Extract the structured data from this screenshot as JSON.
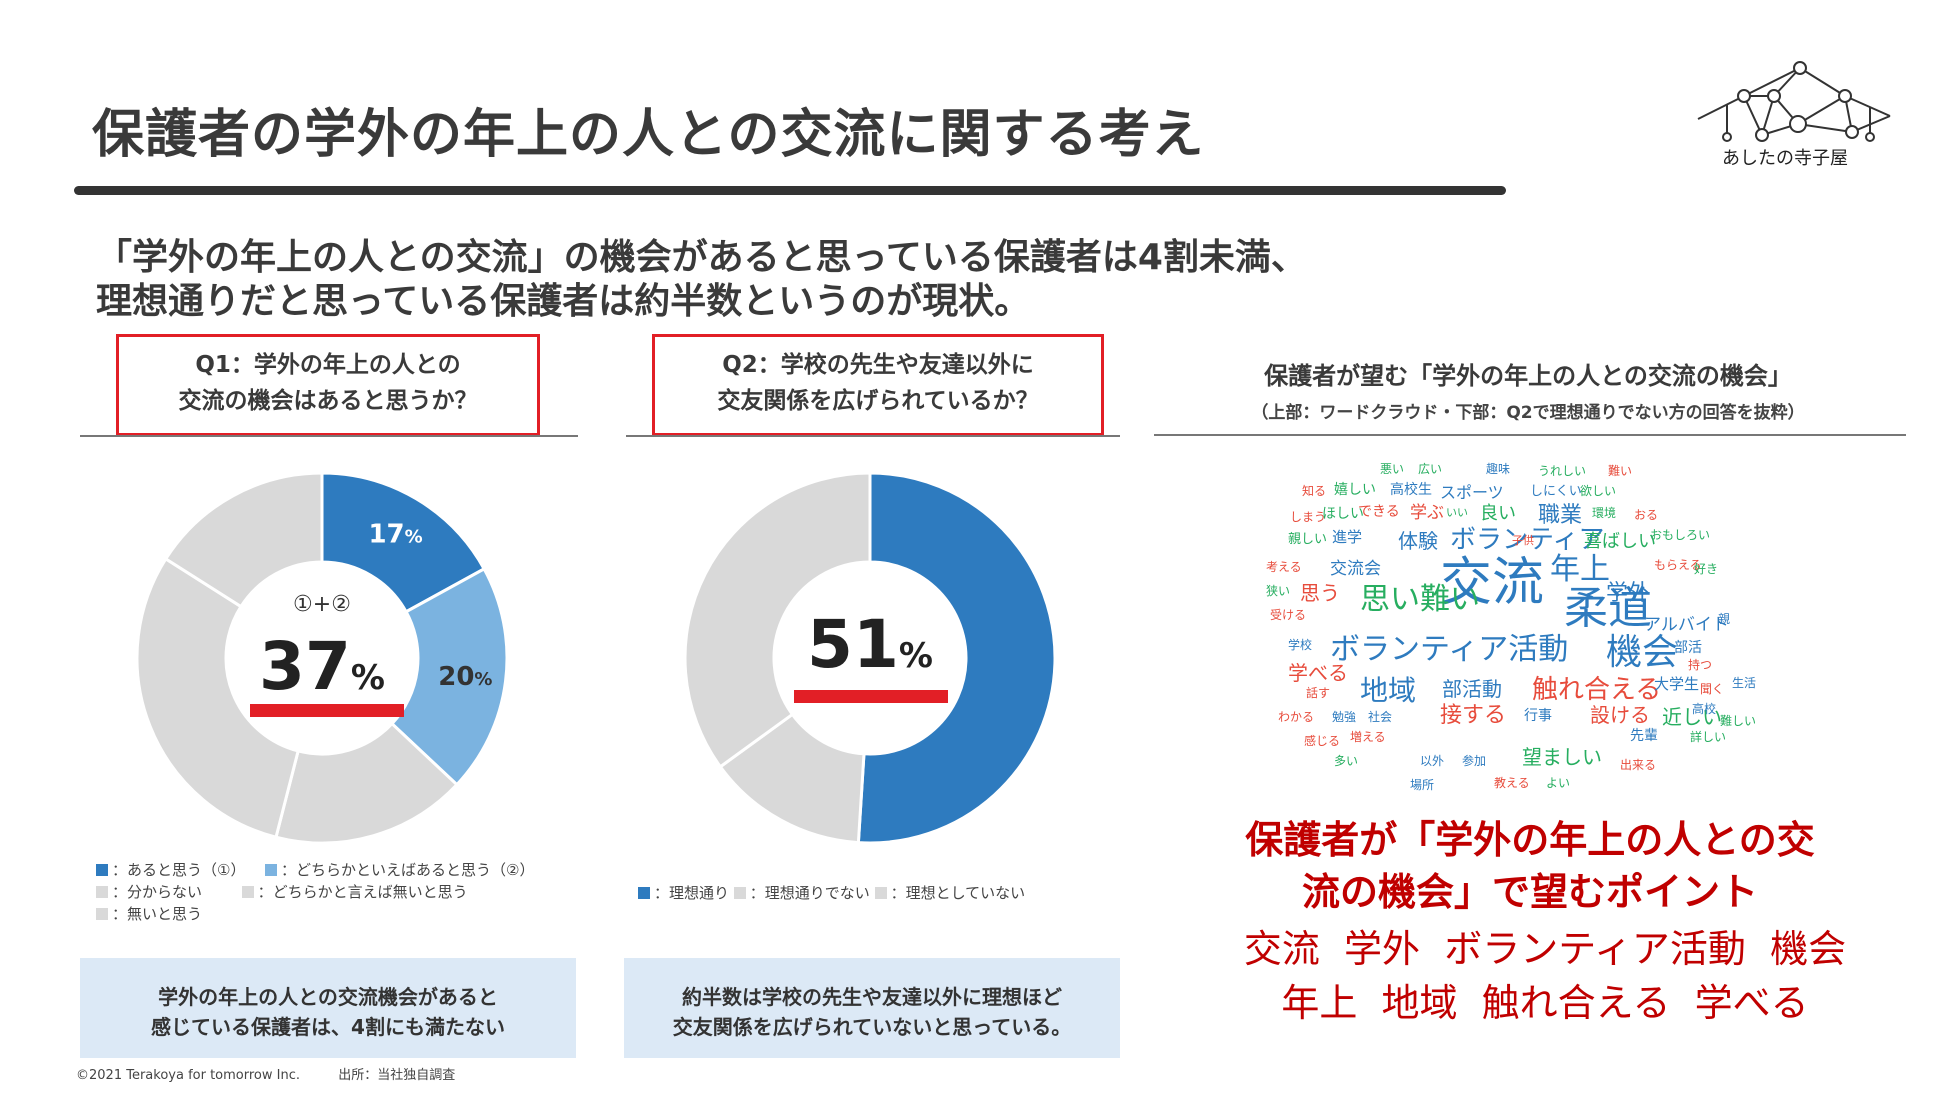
{
  "title": "保護者の学外の年上の人との交流に関する考え",
  "subtitle": {
    "line1": "「学外の年上の人との交流」の機会があると思っている保護者は4割未満、",
    "line2": "理想通りだと思っている保護者は約半数というのが現状。"
  },
  "logo": {
    "text": "あしたの寺子屋"
  },
  "colors": {
    "accent_red": "#e21f26",
    "dark_blue": "#2e7bbf",
    "light_blue": "#7bb3e0",
    "grey": "#d9d9d9",
    "summary_bg": "#dce9f6"
  },
  "q1": {
    "question_line1": "Q1：学外の年上の人との",
    "question_line2": "交流の機会はあると思うか？",
    "center_caption": "①+②",
    "center_value": "37",
    "center_unit": "%",
    "legend": [
      {
        "label": "：あると思う（①）",
        "color": "#2e7bbf"
      },
      {
        "label": "：どちらかといえばあると思う（②）",
        "color": "#7bb3e0"
      },
      {
        "label": "：分からない",
        "color": "#d9d9d9"
      },
      {
        "label": "：どちらかと言えば無いと思う",
        "color": "#d9d9d9"
      },
      {
        "label": "：無いと思う",
        "color": "#d9d9d9"
      }
    ],
    "summary_line1": "学外の年上の人との交流機会があると",
    "summary_line2": "感じている保護者は、4割にも満たない"
  },
  "q2": {
    "question_line1": "Q2：学校の先生や友達以外に",
    "question_line2": "交友関係を広げられているか？",
    "center_value": "51",
    "center_unit": "%",
    "legend": [
      {
        "label": "：理想通り",
        "color": "#2e7bbf"
      },
      {
        "label": "：理想通りでない",
        "color": "#d9d9d9"
      },
      {
        "label": "：理想としていない",
        "color": "#d9d9d9"
      }
    ],
    "summary_line1": "約半数は学校の先生や友達以外に理想ほど",
    "summary_line2": "交友関係を広げられていないと思っている。"
  },
  "chart_data": [
    {
      "type": "pie",
      "donut": true,
      "title": "Q1：学外の年上の人との交流の機会はあると思うか？",
      "slices": [
        {
          "name": "あると思う（①）",
          "value": 17,
          "label": "17",
          "unit": "%",
          "color": "#2e7bbf"
        },
        {
          "name": "どちらかといえばあると思う（②）",
          "value": 20,
          "label": "20",
          "unit": "%",
          "color": "#7bb3e0"
        },
        {
          "name": "分からない",
          "value": 17,
          "color": "#d9d9d9"
        },
        {
          "name": "どちらかと言えば無いと思う",
          "value": 30,
          "color": "#d9d9d9"
        },
        {
          "name": "無いと思う",
          "value": 16,
          "color": "#d9d9d9"
        }
      ]
    },
    {
      "type": "pie",
      "donut": true,
      "title": "Q2：学校の先生や友達以外に交友関係を広げられているか？",
      "slices": [
        {
          "name": "理想通り",
          "value": 51,
          "color": "#2e7bbf"
        },
        {
          "name": "理想通りでない",
          "value": 14,
          "color": "#d9d9d9"
        },
        {
          "name": "理想としていない",
          "value": 35,
          "color": "#d9d9d9"
        }
      ]
    }
  ],
  "cloud": {
    "heading": "保護者が望む「学外の年上の人との交流の機会」",
    "note": "（上部：ワードクラウド・下部：Q2で理想通りでない方の回答を抜粋）",
    "words": [
      {
        "t": "悪い",
        "c": "#27ae60"
      },
      {
        "t": "広い",
        "c": "#27ae60"
      },
      {
        "t": "趣味",
        "c": "#2e7bbf"
      },
      {
        "t": "うれしい",
        "c": "#27ae60"
      },
      {
        "t": "難い",
        "c": "#e74c3c"
      },
      {
        "t": "知る",
        "c": "#e74c3c"
      },
      {
        "t": "嬉しい",
        "c": "#27ae60"
      },
      {
        "t": "高校生",
        "c": "#2e7bbf"
      },
      {
        "t": "スポーツ",
        "c": "#2e7bbf"
      },
      {
        "t": "しにくい",
        "c": "#2e7bbf"
      },
      {
        "t": "欲しい",
        "c": "#27ae60"
      },
      {
        "t": "しまう",
        "c": "#e74c3c"
      },
      {
        "t": "ほしい",
        "c": "#27ae60"
      },
      {
        "t": "できる",
        "c": "#e74c3c"
      },
      {
        "t": "学ぶ",
        "c": "#e74c3c"
      },
      {
        "t": "いい",
        "c": "#27ae60"
      },
      {
        "t": "良い",
        "c": "#27ae60"
      },
      {
        "t": "職業",
        "c": "#2e7bbf"
      },
      {
        "t": "環境",
        "c": "#27ae60"
      },
      {
        "t": "おる",
        "c": "#e74c3c"
      },
      {
        "t": "親しい",
        "c": "#27ae60"
      },
      {
        "t": "進学",
        "c": "#2e7bbf"
      },
      {
        "t": "体験",
        "c": "#2e7bbf"
      },
      {
        "t": "ボランティア",
        "c": "#2e7bbf"
      },
      {
        "t": "子供",
        "c": "#e74c3c"
      },
      {
        "t": "喜ばしい",
        "c": "#27ae60"
      },
      {
        "t": "おもしろい",
        "c": "#27ae60"
      },
      {
        "t": "考える",
        "c": "#e74c3c"
      },
      {
        "t": "交流会",
        "c": "#2e7bbf"
      },
      {
        "t": "交流",
        "c": "#2e7bbf"
      },
      {
        "t": "年上",
        "c": "#2e7bbf"
      },
      {
        "t": "もらえる",
        "c": "#e74c3c"
      },
      {
        "t": "好き",
        "c": "#27ae60"
      },
      {
        "t": "狭い",
        "c": "#27ae60"
      },
      {
        "t": "思う",
        "c": "#e74c3c"
      },
      {
        "t": "思い難い",
        "c": "#27ae60"
      },
      {
        "t": "学外",
        "c": "#2e7bbf"
      },
      {
        "t": "柔道",
        "c": "#2e7bbf"
      },
      {
        "t": "受ける",
        "c": "#e74c3c"
      },
      {
        "t": "アルバイト",
        "c": "#2e7bbf"
      },
      {
        "t": "親",
        "c": "#2e7bbf"
      },
      {
        "t": "学校",
        "c": "#2e7bbf"
      },
      {
        "t": "ボランティア活動",
        "c": "#2e7bbf"
      },
      {
        "t": "機会",
        "c": "#2e7bbf"
      },
      {
        "t": "部活",
        "c": "#2e7bbf"
      },
      {
        "t": "持つ",
        "c": "#e74c3c"
      },
      {
        "t": "学べる",
        "c": "#e74c3c"
      },
      {
        "t": "生活",
        "c": "#2e7bbf"
      },
      {
        "t": "話す",
        "c": "#e74c3c"
      },
      {
        "t": "地域",
        "c": "#2e7bbf"
      },
      {
        "t": "部活動",
        "c": "#2e7bbf"
      },
      {
        "t": "触れ合える",
        "c": "#e74c3c"
      },
      {
        "t": "大学生",
        "c": "#2e7bbf"
      },
      {
        "t": "聞く",
        "c": "#e74c3c"
      },
      {
        "t": "わかる",
        "c": "#e74c3c"
      },
      {
        "t": "勉強",
        "c": "#2e7bbf"
      },
      {
        "t": "社会",
        "c": "#2e7bbf"
      },
      {
        "t": "接する",
        "c": "#e74c3c"
      },
      {
        "t": "行事",
        "c": "#2e7bbf"
      },
      {
        "t": "設ける",
        "c": "#e74c3c"
      },
      {
        "t": "近しい",
        "c": "#27ae60"
      },
      {
        "t": "高校",
        "c": "#2e7bbf"
      },
      {
        "t": "難しい",
        "c": "#27ae60"
      },
      {
        "t": "感じる",
        "c": "#e74c3c"
      },
      {
        "t": "増える",
        "c": "#e74c3c"
      },
      {
        "t": "先輩",
        "c": "#2e7bbf"
      },
      {
        "t": "詳しい",
        "c": "#27ae60"
      },
      {
        "t": "多い",
        "c": "#27ae60"
      },
      {
        "t": "以外",
        "c": "#2e7bbf"
      },
      {
        "t": "参加",
        "c": "#2e7bbf"
      },
      {
        "t": "望ましい",
        "c": "#27ae60"
      },
      {
        "t": "出来る",
        "c": "#e74c3c"
      },
      {
        "t": "場所",
        "c": "#2e7bbf"
      },
      {
        "t": "教える",
        "c": "#e74c3c"
      },
      {
        "t": "よい",
        "c": "#27ae60"
      }
    ]
  },
  "points": {
    "heading_line1": "保護者が「学外の年上の人との交",
    "heading_line2": "流の機会」で望むポイント",
    "body_line1": "交流  学外  ボランティア活動  機会",
    "body_line2": "年上  地域  触れ合える  学べる"
  },
  "footer": {
    "copyright": "©2021 Terakoya for tomorrow Inc.",
    "source": "出所：当社独自調査"
  }
}
